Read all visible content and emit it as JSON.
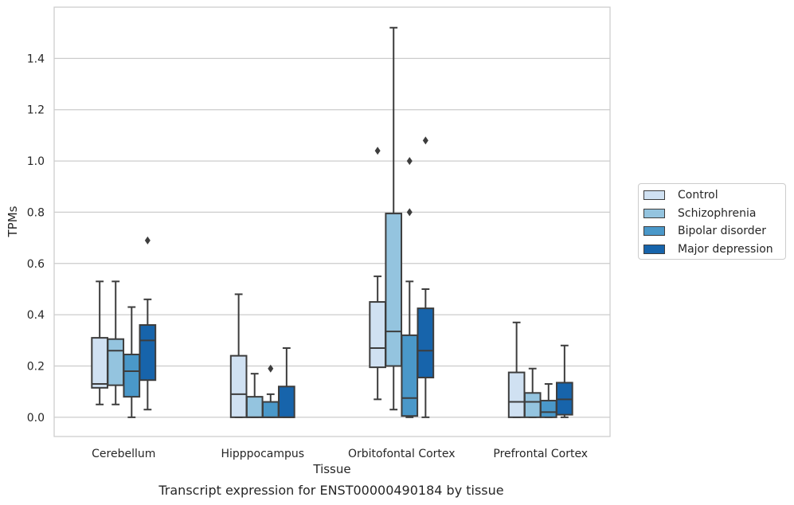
{
  "chart_data": {
    "type": "box",
    "xlabel": "Tissue",
    "ylabel": "TPMs",
    "caption": "Transcript expression for ENST00000490184 by tissue",
    "ylim": [
      -0.075,
      1.6
    ],
    "yticks": [
      "0.0",
      "0.2",
      "0.4",
      "0.6",
      "0.8",
      "1.0",
      "1.2",
      "1.4"
    ],
    "grid": "horizontal",
    "legend_position": "right",
    "categories": [
      "Cerebellum",
      "Hipppocampus",
      "Orbitofontal Cortex",
      "Prefrontal Cortex"
    ],
    "series": [
      {
        "name": "Control",
        "color": "#d0e1f2",
        "boxes": [
          {
            "whisker_low": 0.05,
            "q1": 0.115,
            "median": 0.13,
            "q3": 0.31,
            "whisker_high": 0.53,
            "outliers": []
          },
          {
            "whisker_low": 0.0,
            "q1": 0.0,
            "median": 0.09,
            "q3": 0.24,
            "whisker_high": 0.48,
            "outliers": []
          },
          {
            "whisker_low": 0.07,
            "q1": 0.195,
            "median": 0.27,
            "q3": 0.45,
            "whisker_high": 0.55,
            "outliers": [
              1.04
            ]
          },
          {
            "whisker_low": 0.0,
            "q1": 0.0,
            "median": 0.06,
            "q3": 0.175,
            "whisker_high": 0.37,
            "outliers": []
          }
        ]
      },
      {
        "name": "Schizophrenia",
        "color": "#94c4df",
        "boxes": [
          {
            "whisker_low": 0.05,
            "q1": 0.125,
            "median": 0.26,
            "q3": 0.305,
            "whisker_high": 0.53,
            "outliers": []
          },
          {
            "whisker_low": 0.0,
            "q1": 0.0,
            "median": 0.0,
            "q3": 0.08,
            "whisker_high": 0.17,
            "outliers": []
          },
          {
            "whisker_low": 0.03,
            "q1": 0.2,
            "median": 0.335,
            "q3": 0.795,
            "whisker_high": 1.52,
            "outliers": []
          },
          {
            "whisker_low": 0.0,
            "q1": 0.0,
            "median": 0.06,
            "q3": 0.095,
            "whisker_high": 0.19,
            "outliers": []
          }
        ]
      },
      {
        "name": "Bipolar disorder",
        "color": "#4a98c9",
        "boxes": [
          {
            "whisker_low": 0.0,
            "q1": 0.08,
            "median": 0.18,
            "q3": 0.245,
            "whisker_high": 0.43,
            "outliers": []
          },
          {
            "whisker_low": 0.0,
            "q1": 0.0,
            "median": 0.0,
            "q3": 0.06,
            "whisker_high": 0.09,
            "outliers": [
              0.19
            ]
          },
          {
            "whisker_low": 0.0,
            "q1": 0.005,
            "median": 0.075,
            "q3": 0.32,
            "whisker_high": 0.53,
            "outliers": [
              0.8,
              1.0
            ]
          },
          {
            "whisker_low": 0.0,
            "q1": 0.0,
            "median": 0.02,
            "q3": 0.065,
            "whisker_high": 0.13,
            "outliers": []
          }
        ]
      },
      {
        "name": "Major depression",
        "color": "#1764ab",
        "boxes": [
          {
            "whisker_low": 0.03,
            "q1": 0.145,
            "median": 0.3,
            "q3": 0.36,
            "whisker_high": 0.46,
            "outliers": [
              0.69
            ]
          },
          {
            "whisker_low": 0.0,
            "q1": 0.0,
            "median": 0.0,
            "q3": 0.12,
            "whisker_high": 0.27,
            "outliers": []
          },
          {
            "whisker_low": 0.0,
            "q1": 0.155,
            "median": 0.26,
            "q3": 0.425,
            "whisker_high": 0.5,
            "outliers": [
              1.08
            ]
          },
          {
            "whisker_low": 0.0,
            "q1": 0.01,
            "median": 0.07,
            "q3": 0.135,
            "whisker_high": 0.28,
            "outliers": []
          }
        ]
      }
    ]
  }
}
